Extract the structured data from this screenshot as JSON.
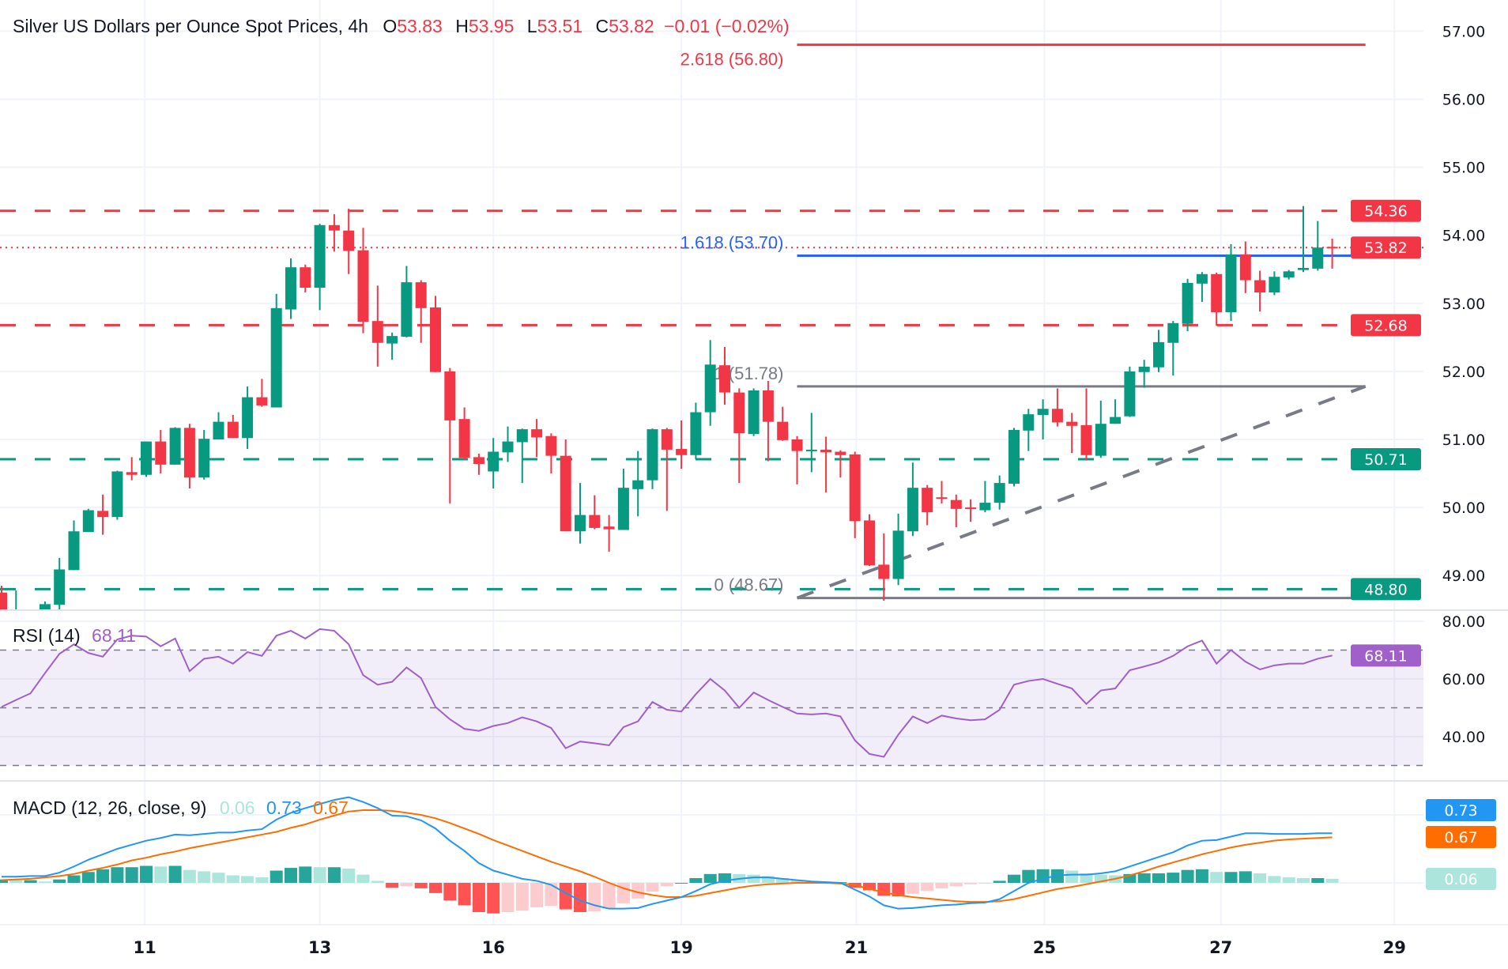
{
  "header": {
    "title": "Silver US Dollars per Ounce Spot Prices, 4h",
    "o_label": "O",
    "o": "53.83",
    "h_label": "H",
    "h": "53.95",
    "l_label": "L",
    "l": "53.51",
    "c_label": "C",
    "c": "53.82",
    "change": "−0.01 (−0.02%)"
  },
  "colors": {
    "up": "#089981",
    "down": "#f23645",
    "fib_blue": "#2962ff",
    "fib_gray": "#787b86",
    "rsi": "#a05fc9",
    "macd": "#2196f3",
    "signal": "#ff6d00",
    "hist_up_strong": "#26a69a",
    "hist_up_weak": "#ace5dc",
    "hist_down_strong": "#ff5252",
    "hist_down_weak": "#fccbcd"
  },
  "x_axis": {
    "labels": [
      {
        "text": "11",
        "bar": 9.9
      },
      {
        "text": "13",
        "bar": 22
      },
      {
        "text": "16",
        "bar": 34
      },
      {
        "text": "19",
        "bar": 47
      },
      {
        "text": "21",
        "bar": 59.1
      },
      {
        "text": "25",
        "bar": 72.1
      },
      {
        "text": "27",
        "bar": 84.3
      },
      {
        "text": "29",
        "bar": 96.3
      }
    ]
  },
  "chart_data": [
    {
      "type": "candlestick",
      "title": "Silver US Dollars per Ounce Spot Prices, 4h",
      "y_ticks": [
        "57.00",
        "56.00",
        "55.00",
        "54.00",
        "53.00",
        "52.00",
        "51.00",
        "50.00",
        "49.00"
      ],
      "y_tick_values": [
        57,
        56,
        55,
        54,
        53,
        52,
        51,
        50,
        49
      ],
      "grid": true,
      "ohlc": [
        [
          48.75,
          48.85,
          48.3,
          48.5
        ],
        [
          48.3,
          48.78,
          48.2,
          48.45
        ],
        [
          48.4,
          48.45,
          48.2,
          48.3
        ],
        [
          48.47,
          48.62,
          48.4,
          48.58
        ],
        [
          48.57,
          49.26,
          48.5,
          49.09
        ],
        [
          49.08,
          49.81,
          49.08,
          49.65
        ],
        [
          49.64,
          49.98,
          49.64,
          49.96
        ],
        [
          49.95,
          50.19,
          49.6,
          49.86
        ],
        [
          49.86,
          50.54,
          49.82,
          50.53
        ],
        [
          50.52,
          50.74,
          50.4,
          50.48
        ],
        [
          50.48,
          50.97,
          50.45,
          50.97
        ],
        [
          50.97,
          51.14,
          50.5,
          50.63
        ],
        [
          50.63,
          51.18,
          50.63,
          51.17
        ],
        [
          51.17,
          51.23,
          50.28,
          50.44
        ],
        [
          50.44,
          51.14,
          50.41,
          51.01
        ],
        [
          51.0,
          51.4,
          51.0,
          51.26
        ],
        [
          51.26,
          51.36,
          51.02,
          51.02
        ],
        [
          51.02,
          51.78,
          50.86,
          51.62
        ],
        [
          51.62,
          51.89,
          51.48,
          51.5
        ],
        [
          51.47,
          53.14,
          51.47,
          52.93
        ],
        [
          52.91,
          53.66,
          52.77,
          53.53
        ],
        [
          53.53,
          53.57,
          53.16,
          53.23
        ],
        [
          53.23,
          54.17,
          52.9,
          54.15
        ],
        [
          54.15,
          54.31,
          53.76,
          54.07
        ],
        [
          54.07,
          54.39,
          53.43,
          53.77
        ],
        [
          53.78,
          54.11,
          52.56,
          52.73
        ],
        [
          52.74,
          53.26,
          52.07,
          52.42
        ],
        [
          52.41,
          52.57,
          52.17,
          52.52
        ],
        [
          52.51,
          53.55,
          52.5,
          53.31
        ],
        [
          53.31,
          53.34,
          52.42,
          52.93
        ],
        [
          52.94,
          53.11,
          51.99,
          51.99
        ],
        [
          52.0,
          52.05,
          50.06,
          51.28
        ],
        [
          51.3,
          51.47,
          50.71,
          50.73
        ],
        [
          50.74,
          50.79,
          50.48,
          50.64
        ],
        [
          50.53,
          51.02,
          50.28,
          50.82
        ],
        [
          50.81,
          51.19,
          50.67,
          50.97
        ],
        [
          50.96,
          51.16,
          50.36,
          51.15
        ],
        [
          51.15,
          51.3,
          50.74,
          51.03
        ],
        [
          51.05,
          51.09,
          50.5,
          50.76
        ],
        [
          50.76,
          51.0,
          49.65,
          49.65
        ],
        [
          49.65,
          50.36,
          49.47,
          49.89
        ],
        [
          49.89,
          50.18,
          49.68,
          49.7
        ],
        [
          49.72,
          49.89,
          49.35,
          49.68
        ],
        [
          49.67,
          50.57,
          49.67,
          50.29
        ],
        [
          50.27,
          50.83,
          49.87,
          50.4
        ],
        [
          50.4,
          51.16,
          50.27,
          51.15
        ],
        [
          51.15,
          51.17,
          49.95,
          50.85
        ],
        [
          50.86,
          51.28,
          50.57,
          50.77
        ],
        [
          50.77,
          51.54,
          50.71,
          51.4
        ],
        [
          51.4,
          52.46,
          51.2,
          52.1
        ],
        [
          52.09,
          52.36,
          51.51,
          51.69
        ],
        [
          51.69,
          51.75,
          50.36,
          51.09
        ],
        [
          51.08,
          51.75,
          51.05,
          51.72
        ],
        [
          51.72,
          51.86,
          50.68,
          51.26
        ],
        [
          51.26,
          51.48,
          50.98,
          50.99
        ],
        [
          51.0,
          51.05,
          50.34,
          50.83
        ],
        [
          50.83,
          51.39,
          50.52,
          50.85
        ],
        [
          50.85,
          51.04,
          50.22,
          50.81
        ],
        [
          50.82,
          50.84,
          50.44,
          50.77
        ],
        [
          50.78,
          50.82,
          49.55,
          49.8
        ],
        [
          49.81,
          49.9,
          49.14,
          49.15
        ],
        [
          49.16,
          49.62,
          48.63,
          48.95
        ],
        [
          48.95,
          49.91,
          48.86,
          49.66
        ],
        [
          49.65,
          50.66,
          49.58,
          50.29
        ],
        [
          50.29,
          50.33,
          49.74,
          49.93
        ],
        [
          50.15,
          50.39,
          50.06,
          50.13
        ],
        [
          50.11,
          50.19,
          49.71,
          49.98
        ],
        [
          50.0,
          50.12,
          49.79,
          49.99
        ],
        [
          49.96,
          50.39,
          49.93,
          50.07
        ],
        [
          50.07,
          50.47,
          49.97,
          50.36
        ],
        [
          50.35,
          51.17,
          50.31,
          51.14
        ],
        [
          51.13,
          51.45,
          50.83,
          51.37
        ],
        [
          51.36,
          51.59,
          51.0,
          51.45
        ],
        [
          51.45,
          51.75,
          51.19,
          51.25
        ],
        [
          51.26,
          51.39,
          50.8,
          51.2
        ],
        [
          51.21,
          51.75,
          50.69,
          50.77
        ],
        [
          50.76,
          51.57,
          50.73,
          51.23
        ],
        [
          51.23,
          51.59,
          51.23,
          51.33
        ],
        [
          51.34,
          52.07,
          51.33,
          52.0
        ],
        [
          51.99,
          52.17,
          51.76,
          52.07
        ],
        [
          52.06,
          52.61,
          51.99,
          52.43
        ],
        [
          52.42,
          52.74,
          51.94,
          52.71
        ],
        [
          52.7,
          53.36,
          52.59,
          53.3
        ],
        [
          53.29,
          53.46,
          53.02,
          53.43
        ],
        [
          53.43,
          53.45,
          52.67,
          52.87
        ],
        [
          52.87,
          53.87,
          52.74,
          53.72
        ],
        [
          53.72,
          53.91,
          53.15,
          53.34
        ],
        [
          53.34,
          53.48,
          52.88,
          53.16
        ],
        [
          53.16,
          53.47,
          53.12,
          53.39
        ],
        [
          53.38,
          53.49,
          53.35,
          53.47
        ],
        [
          53.49,
          54.43,
          53.46,
          53.52
        ],
        [
          53.51,
          54.21,
          53.48,
          53.82
        ],
        [
          53.83,
          53.95,
          53.51,
          53.82
        ]
      ],
      "horizontal_levels": [
        {
          "value": 54.36,
          "label": "54.36",
          "color": "#f23645",
          "style": "dashed"
        },
        {
          "value": 52.68,
          "label": "52.68",
          "color": "#f23645",
          "style": "dashed"
        },
        {
          "value": 50.71,
          "label": "50.71",
          "color": "#089981",
          "style": "dashed"
        },
        {
          "value": 48.8,
          "label": "48.80",
          "color": "#089981",
          "style": "dashed"
        }
      ],
      "last_price": {
        "value": 53.82,
        "label": "53.82",
        "color": "#f23645"
      },
      "fibonacci": {
        "start_bar": 55,
        "end_bar": 94.3,
        "levels": [
          {
            "value": 56.8,
            "label": "2.618 (56.80)",
            "color": "#f23645"
          },
          {
            "value": 53.7,
            "label": "1.618 (53.70)",
            "color": "#2962ff"
          },
          {
            "value": 51.78,
            "label": "1 (51.78)",
            "color": "#787b86"
          },
          {
            "value": 48.67,
            "label": "0 (48.67)",
            "color": "#787b86"
          }
        ]
      },
      "trendline": {
        "from": {
          "bar": 55,
          "price": 48.67
        },
        "to": {
          "bar": 94.3,
          "price": 51.78
        },
        "style": "dashed",
        "color": "#787b86"
      }
    },
    {
      "type": "line",
      "name": "RSI (14)",
      "current": "68.11",
      "current_color": "#a05fc9",
      "y_ticks": [
        "80.00",
        "60.00",
        "40.00"
      ],
      "y_tick_values": [
        80,
        60,
        40
      ],
      "band": [
        30,
        70
      ],
      "dashed_levels": [
        70,
        50,
        30
      ],
      "values": [
        50.3,
        52.7,
        55,
        62,
        68.7,
        72,
        69,
        67.7,
        73.7,
        75,
        74.7,
        71.3,
        74,
        62.7,
        67,
        67.7,
        65.3,
        69.3,
        68,
        75,
        76.7,
        74,
        77.3,
        76.7,
        72,
        61.3,
        58,
        59,
        64,
        60.3,
        50.3,
        46,
        42.7,
        42,
        43.7,
        44.7,
        46.7,
        45.3,
        43,
        36,
        38.3,
        37.7,
        37,
        43.3,
        45.3,
        52,
        49.3,
        48.7,
        54.7,
        60,
        56,
        50,
        55.3,
        52.7,
        50.3,
        48,
        47.7,
        48,
        47,
        38.7,
        34,
        33,
        40.7,
        47,
        44.7,
        47.3,
        46.3,
        45.7,
        46,
        49.3,
        58,
        59.3,
        60,
        58.3,
        56.7,
        51.3,
        56,
        56.7,
        63,
        64.3,
        65.7,
        68,
        71.3,
        73.3,
        65.3,
        70,
        66,
        63.3,
        64.7,
        65.3,
        65.3,
        67,
        68.11
      ]
    },
    {
      "type": "line",
      "name": "MACD (12, 26, close, 9)",
      "hist_current": "0.06",
      "macd_current": "0.73",
      "signal_current": "0.67",
      "macd": [
        0.09,
        0.09,
        0.1,
        0.1,
        0.15,
        0.24,
        0.34,
        0.42,
        0.5,
        0.56,
        0.62,
        0.66,
        0.71,
        0.7,
        0.72,
        0.74,
        0.74,
        0.77,
        0.79,
        0.93,
        1.03,
        1.1,
        1.16,
        1.22,
        1.26,
        1.19,
        1.1,
        0.99,
        0.98,
        0.92,
        0.8,
        0.62,
        0.47,
        0.29,
        0.18,
        0.12,
        0.06,
        0.03,
        -0.03,
        -0.15,
        -0.26,
        -0.33,
        -0.38,
        -0.38,
        -0.37,
        -0.31,
        -0.26,
        -0.21,
        -0.12,
        -0.02,
        0.03,
        0.06,
        0.08,
        0.08,
        0.06,
        0.04,
        0.02,
        0.01,
        0.0,
        -0.1,
        -0.2,
        -0.33,
        -0.38,
        -0.37,
        -0.35,
        -0.33,
        -0.32,
        -0.3,
        -0.29,
        -0.24,
        -0.12,
        0.0,
        0.06,
        0.11,
        0.12,
        0.12,
        0.14,
        0.17,
        0.24,
        0.31,
        0.38,
        0.45,
        0.55,
        0.62,
        0.63,
        0.68,
        0.73,
        0.73,
        0.72,
        0.72,
        0.72,
        0.73,
        0.73
      ],
      "signal": [
        0.04,
        0.05,
        0.06,
        0.08,
        0.1,
        0.13,
        0.18,
        0.22,
        0.27,
        0.33,
        0.37,
        0.42,
        0.46,
        0.51,
        0.55,
        0.59,
        0.63,
        0.67,
        0.71,
        0.75,
        0.81,
        0.86,
        0.93,
        0.99,
        1.05,
        1.07,
        1.07,
        1.06,
        1.03,
        1.0,
        0.95,
        0.88,
        0.8,
        0.72,
        0.63,
        0.55,
        0.47,
        0.39,
        0.31,
        0.24,
        0.17,
        0.09,
        0.0,
        -0.08,
        -0.14,
        -0.18,
        -0.21,
        -0.21,
        -0.19,
        -0.15,
        -0.11,
        -0.07,
        -0.04,
        -0.02,
        -0.01,
        0.0,
        0.0,
        0.0,
        -0.01,
        -0.03,
        -0.09,
        -0.14,
        -0.18,
        -0.21,
        -0.23,
        -0.25,
        -0.27,
        -0.28,
        -0.28,
        -0.27,
        -0.24,
        -0.19,
        -0.14,
        -0.09,
        -0.06,
        -0.02,
        0.02,
        0.06,
        0.11,
        0.17,
        0.24,
        0.3,
        0.36,
        0.42,
        0.47,
        0.52,
        0.56,
        0.59,
        0.62,
        0.64,
        0.65,
        0.66,
        0.67
      ]
    }
  ]
}
